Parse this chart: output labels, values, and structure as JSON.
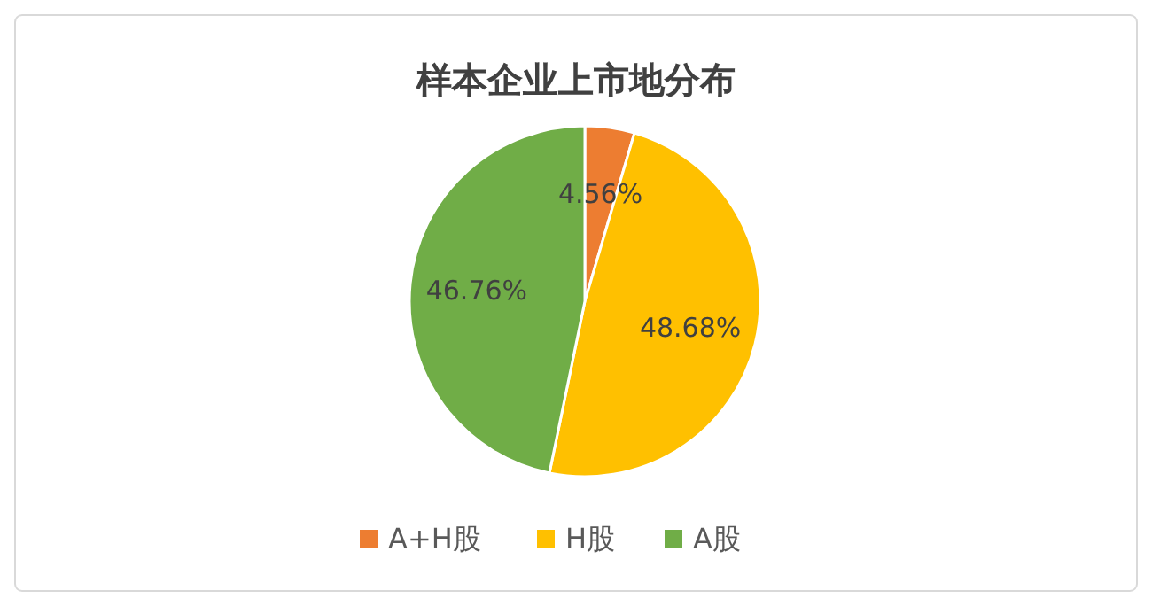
{
  "chart_data": {
    "type": "pie",
    "title": "样本企业上市地分布",
    "categories": [
      "A+H股",
      "H股",
      "A股"
    ],
    "values": [
      4.56,
      48.68,
      46.76
    ],
    "colors": [
      "#ed7d31",
      "#ffc000",
      "#70ad47"
    ],
    "value_labels": [
      "4.56%",
      "48.68%",
      "46.76%"
    ],
    "legend": "bottom"
  }
}
